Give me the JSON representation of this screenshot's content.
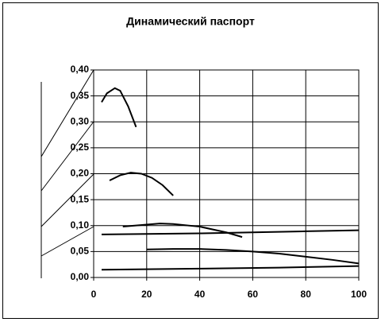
{
  "chart_data": {
    "type": "line",
    "title": "Динамический паспорт",
    "xlim": [
      0,
      100
    ],
    "xticks": [
      0,
      20,
      40,
      60,
      80,
      100
    ],
    "ylim": [
      0,
      0.4
    ],
    "yticks": [
      {
        "value": 0,
        "label": "0,00"
      },
      {
        "value": 0.05,
        "label": "0,05"
      },
      {
        "value": 0.1,
        "label": "0,10"
      },
      {
        "value": 0.15,
        "label": "0,15"
      },
      {
        "value": 0.2,
        "label": "0,20"
      },
      {
        "value": 0.25,
        "label": "0,25"
      },
      {
        "value": 0.3,
        "label": "0,30"
      },
      {
        "value": 0.35,
        "label": "0,35"
      },
      {
        "value": 0.4,
        "label": "0,40"
      }
    ],
    "grid": true,
    "series": [
      {
        "color": "#000000",
        "x": [
          3,
          5,
          8,
          10,
          13,
          16
        ],
        "values": [
          0.338,
          0.355,
          0.365,
          0.36,
          0.33,
          0.29
        ]
      },
      {
        "color": "#000000",
        "x": [
          6,
          10,
          14,
          18,
          22,
          26,
          30
        ],
        "values": [
          0.187,
          0.197,
          0.202,
          0.2,
          0.192,
          0.178,
          0.158
        ]
      },
      {
        "color": "#000000",
        "x": [
          3,
          20,
          40,
          60,
          80,
          100
        ],
        "values": [
          0.083,
          0.084,
          0.085,
          0.087,
          0.089,
          0.091
        ]
      },
      {
        "color": "#000000",
        "x": [
          11,
          20,
          25,
          30,
          40,
          50,
          56
        ],
        "values": [
          0.098,
          0.102,
          0.104,
          0.103,
          0.098,
          0.087,
          0.078
        ]
      },
      {
        "color": "#000000",
        "x": [
          20,
          30,
          40,
          50,
          60,
          70,
          80,
          90,
          100
        ],
        "values": [
          0.054,
          0.055,
          0.055,
          0.053,
          0.05,
          0.046,
          0.04,
          0.034,
          0.027
        ]
      },
      {
        "color": "#000000",
        "x": [
          3,
          40,
          70,
          100
        ],
        "values": [
          0.015,
          0.017,
          0.019,
          0.022
        ]
      }
    ]
  }
}
